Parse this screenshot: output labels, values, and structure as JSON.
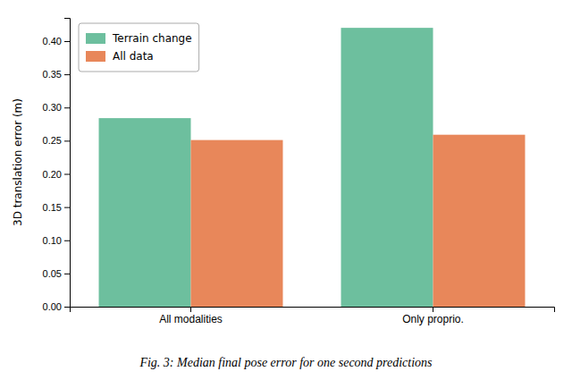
{
  "chart_data": {
    "type": "bar",
    "caption": "Fig. 3: Median final pose error for one second predictions",
    "ylabel": "3D translation error (m)",
    "categories": [
      "All modalities",
      "Only proprio."
    ],
    "series": [
      {
        "name": "Terrain change",
        "color": "#6dbf9e",
        "values": [
          0.284,
          0.42
        ]
      },
      {
        "name": "All data",
        "color": "#e8875a",
        "values": [
          0.251,
          0.259
        ]
      }
    ],
    "ylim": [
      0.0,
      0.435
    ],
    "yticks": [
      {
        "value": 0.0,
        "label": "0.00"
      },
      0.05,
      {
        "value": 0.1,
        "label": "0.10"
      },
      0.15,
      {
        "value": 0.2,
        "label": "0.20"
      },
      0.25,
      {
        "value": 0.3,
        "label": "0.30"
      },
      0.35,
      {
        "value": 0.4,
        "label": "0.40"
      }
    ],
    "grid": false,
    "legend": "upper left"
  }
}
